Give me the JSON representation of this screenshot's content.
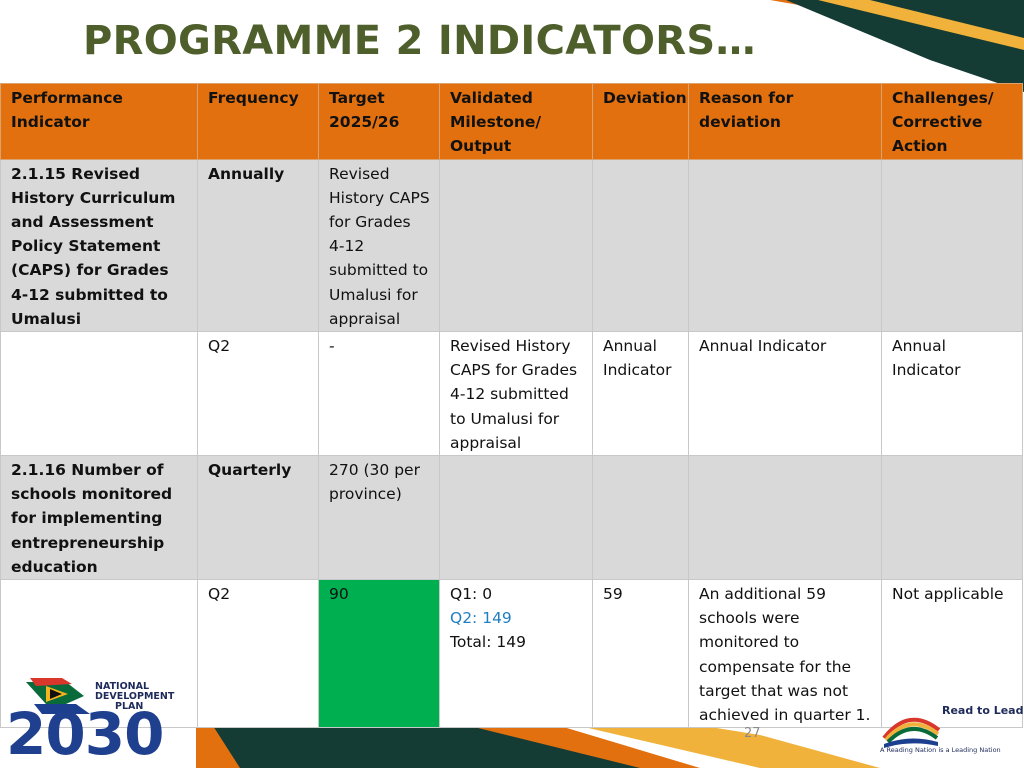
{
  "slide": {
    "title": "PROGRAMME 2 INDICATORS…",
    "page_number": "27"
  },
  "table": {
    "headers": [
      "Performance Indicator",
      "Frequency",
      "Target 2025/26",
      "Validated Milestone/ Output",
      "Deviation",
      "Reason for deviation",
      "Challenges/ Corrective Action"
    ],
    "row1": {
      "indicator": "2.1.15 Revised History Curriculum and Assessment Policy Statement (CAPS) for Grades 4-12 submitted to Umalusi",
      "frequency": "Annually",
      "target": "Revised History CAPS for Grades 4-12 submitted to Umalusi for appraisal"
    },
    "row2": {
      "frequency": "Q2",
      "target": "-",
      "milestone": "Revised History CAPS for Grades 4-12 submitted to Umalusi for appraisal",
      "deviation": "Annual Indicator",
      "reason": "Annual Indicator",
      "challenges": "Annual Indicator"
    },
    "row3": {
      "indicator": "2.1.16 Number of schools monitored for implementing entrepreneurship education",
      "frequency": "Quarterly",
      "target": "270 (30 per province)"
    },
    "row4": {
      "frequency": "Q2",
      "target": "90",
      "milestone_q1": "Q1: 0",
      "milestone_q2": "Q2: 149",
      "milestone_total": "Total: 149",
      "deviation": "59",
      "reason": "An additional 59 schools were monitored to compensate for the target that was not achieved in quarter 1.",
      "challenges": "Not applicable"
    }
  },
  "logos": {
    "ndp_line1": "NATIONAL",
    "ndp_line2": "DEVELOPMENT",
    "ndp_line3": "PLAN",
    "ndp_year": "2030",
    "rtl_title": "Read to Lead",
    "rtl_tagline": "A Reading Nation is a Leading Nation"
  },
  "colors": {
    "header_orange": "#e2700f",
    "title_olive": "#4e5f2b",
    "row_grey": "#d9d9d9",
    "target_green": "#00b050",
    "highlight_blue": "#1f7fc1",
    "dark_teal": "#143b34"
  }
}
